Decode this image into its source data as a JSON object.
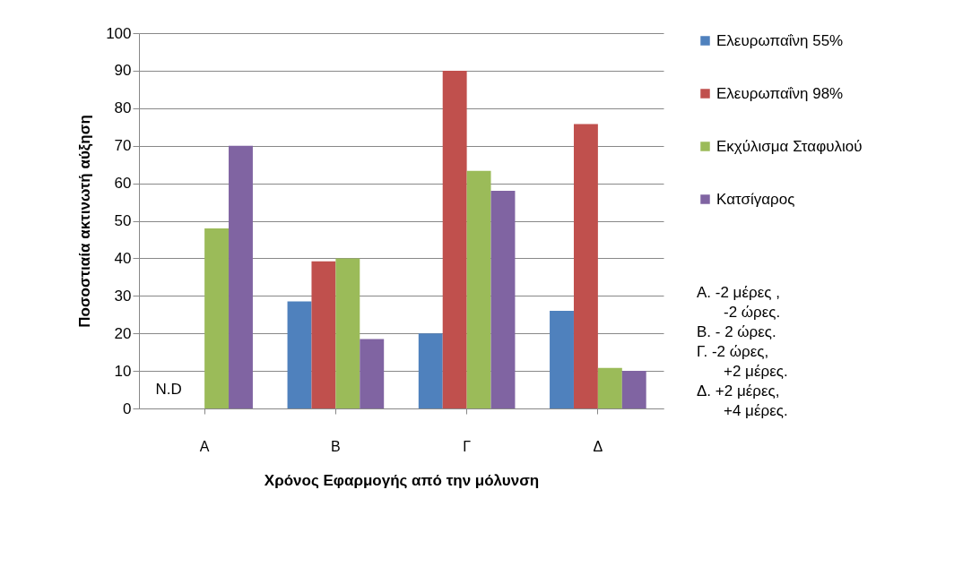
{
  "chart_data": {
    "type": "bar",
    "xlabel": "Χρόνος Εφαρμογής από την μόλυνση",
    "ylabel": "Ποσοστιαία ακτινωτή αύξηση",
    "categories": [
      "Α",
      "Β",
      "Γ",
      "Δ"
    ],
    "series": [
      {
        "name": "Ελευρωπαΐνη 55%",
        "color": "#4f81bd",
        "values": [
          null,
          28.5,
          20,
          26
        ]
      },
      {
        "name": "Ελευρωπαΐνη 98%",
        "color": "#c0504d",
        "values": [
          null,
          39.2,
          90,
          75.8
        ]
      },
      {
        "name": "Εκχύλισμα Σταφυλιού",
        "color": "#9bbb59",
        "values": [
          48,
          40,
          63.3,
          10.8
        ]
      },
      {
        "name": "Κατσίγαρος",
        "color": "#8064a2",
        "values": [
          70,
          18.5,
          58,
          10
        ]
      }
    ],
    "ylim": [
      0,
      100
    ],
    "yticks": [
      0,
      10,
      20,
      30,
      40,
      50,
      60,
      70,
      80,
      90,
      100
    ],
    "grid": "y",
    "legend": "right",
    "annotations": [
      {
        "text": "N.D",
        "x": "Α",
        "y": 5
      },
      "Α. -2 μέρες ,\n-2 ώρες.",
      "Β. - 2 ώρες.",
      "Γ.  -2 ώρες,\n+2 μέρες.",
      "Δ.  +2 μέρες,\n+4 μέρες."
    ]
  }
}
